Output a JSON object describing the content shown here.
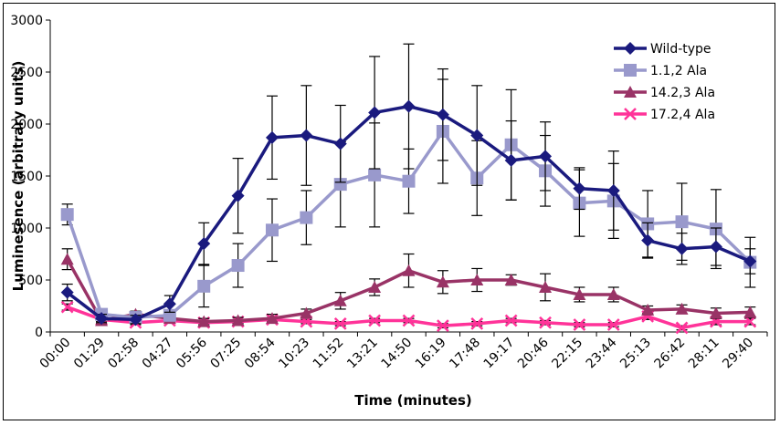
{
  "chart_data": {
    "type": "line",
    "title": "",
    "xlabel": "Time (minutes)",
    "ylabel": "Luminesence (arbitrary units)",
    "ylim": [
      0,
      3000
    ],
    "yticks": [
      "0",
      "500",
      "1000",
      "1500",
      "2000",
      "2500",
      "3000"
    ],
    "yticks_values": [
      0,
      500,
      1000,
      1500,
      2000,
      2500,
      3000
    ],
    "categories": [
      "00:00",
      "01:29",
      "02:58",
      "04:27",
      "05:56",
      "07:25",
      "08:54",
      "10:23",
      "11:52",
      "13:21",
      "14:50",
      "16:19",
      "17:48",
      "19:17",
      "20:46",
      "22:15",
      "23:44",
      "25:13",
      "26:42",
      "28:11",
      "29:40"
    ],
    "grid": false,
    "legend_position": "top-right",
    "series": [
      {
        "name": "Wild-type",
        "color": "#1a1a7e",
        "marker": "diamond",
        "values": [
          380,
          130,
          120,
          270,
          850,
          1310,
          1870,
          1890,
          1810,
          2110,
          2170,
          2090,
          1890,
          1650,
          1690,
          1380,
          1360,
          880,
          800,
          820,
          680
        ],
        "errors": [
          80,
          40,
          40,
          80,
          200,
          360,
          400,
          480,
          370,
          540,
          600,
          440,
          480,
          380,
          330,
          200,
          380,
          170,
          150,
          180,
          120
        ]
      },
      {
        "name": "1.1,2 Ala",
        "color": "#9999cc",
        "marker": "square",
        "values": [
          1130,
          170,
          140,
          160,
          440,
          640,
          980,
          1100,
          1420,
          1510,
          1450,
          1930,
          1480,
          1800,
          1550,
          1240,
          1260,
          1040,
          1060,
          990,
          670
        ],
        "errors": [
          100,
          50,
          40,
          50,
          200,
          210,
          300,
          260,
          410,
          500,
          310,
          500,
          360,
          530,
          340,
          320,
          360,
          320,
          370,
          380,
          240
        ]
      },
      {
        "name": "14.2,3 Ala",
        "color": "#993366",
        "marker": "triangle",
        "values": [
          700,
          110,
          170,
          130,
          100,
          110,
          130,
          180,
          300,
          430,
          590,
          480,
          500,
          500,
          430,
          360,
          360,
          210,
          220,
          180,
          190
        ],
        "errors": [
          100,
          30,
          30,
          30,
          30,
          30,
          40,
          40,
          80,
          80,
          160,
          110,
          110,
          50,
          130,
          70,
          70,
          40,
          40,
          50,
          50
        ]
      },
      {
        "name": "17.2,4 Ala",
        "color": "#ff3399",
        "marker": "x",
        "values": [
          240,
          120,
          90,
          110,
          90,
          100,
          120,
          100,
          80,
          110,
          110,
          60,
          80,
          110,
          90,
          70,
          70,
          150,
          40,
          100,
          100
        ],
        "errors": [
          30,
          20,
          20,
          20,
          20,
          20,
          20,
          20,
          20,
          20,
          20,
          20,
          20,
          20,
          20,
          20,
          20,
          30,
          20,
          30,
          30
        ]
      }
    ]
  }
}
